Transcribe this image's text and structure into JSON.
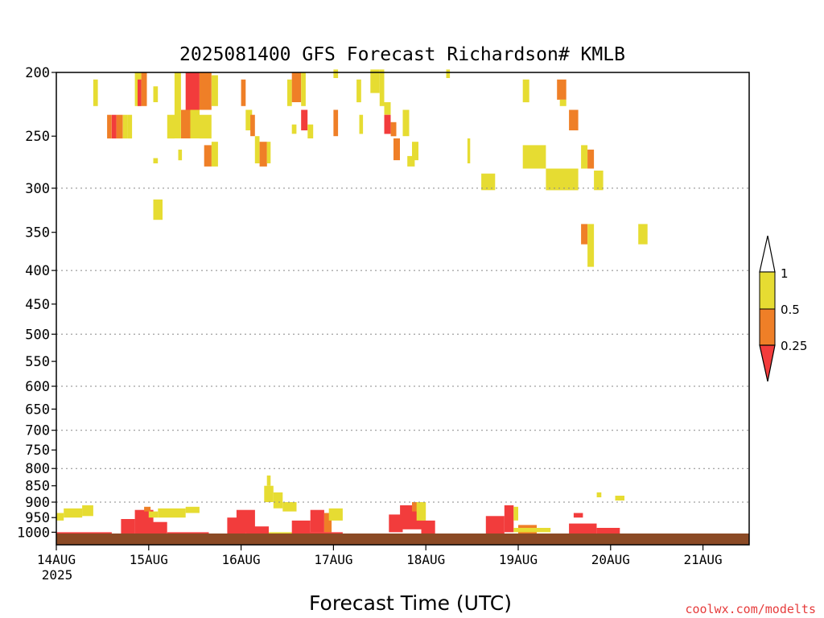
{
  "chart_data": {
    "type": "heatmap",
    "title": "2025081400 GFS Forecast Richardson# KMLB",
    "xlabel": "Forecast Time (UTC)",
    "ylabel": "",
    "credit": "coolwx.com/modelts",
    "x_axis": {
      "ticks": [
        "14AUG",
        "15AUG",
        "16AUG",
        "17AUG",
        "18AUG",
        "19AUG",
        "20AUG",
        "21AUG"
      ],
      "year": "2025",
      "range_days": [
        0,
        7.5
      ]
    },
    "y_axis": {
      "scale": "log",
      "reversed": true,
      "range_hpa": [
        1045,
        200
      ],
      "ticks": [
        200,
        250,
        300,
        350,
        400,
        450,
        500,
        550,
        600,
        650,
        700,
        750,
        800,
        850,
        900,
        950,
        1000
      ],
      "dotted_grid": [
        300,
        400,
        500,
        600,
        700,
        800,
        900
      ]
    },
    "colorbar": {
      "labels": [
        "1",
        "0.5",
        "0.25"
      ],
      "bins": [
        {
          "range": "0.5-1",
          "color": "#e6dc32"
        },
        {
          "range": "0.25-0.5",
          "color": "#ef7f27"
        },
        {
          "range": "<0.25",
          "color": "#f23c3c"
        }
      ],
      "over_color": "#ffffff"
    },
    "colors": {
      "yellow": "#e6dc32",
      "orange": "#ef7f27",
      "red": "#f23c3c",
      "ground": "#8b4a25"
    },
    "cells": [
      {
        "t": [
          0.4,
          0.45
        ],
        "p": [
          205,
          225
        ],
        "c": "y"
      },
      {
        "t": [
          0.55,
          0.6
        ],
        "p": [
          232,
          252
        ],
        "c": "o"
      },
      {
        "t": [
          0.6,
          0.65
        ],
        "p": [
          232,
          252
        ],
        "c": "r"
      },
      {
        "t": [
          0.65,
          0.72
        ],
        "p": [
          232,
          252
        ],
        "c": "o"
      },
      {
        "t": [
          0.72,
          0.77
        ],
        "p": [
          232,
          252
        ],
        "c": "y"
      },
      {
        "t": [
          0.77,
          0.82
        ],
        "p": [
          232,
          252
        ],
        "c": "y"
      },
      {
        "t": [
          0.85,
          0.92
        ],
        "p": [
          200,
          225
        ],
        "c": "y"
      },
      {
        "t": [
          0.88,
          0.92
        ],
        "p": [
          205,
          225
        ],
        "c": "r"
      },
      {
        "t": [
          0.92,
          0.98
        ],
        "p": [
          200,
          225
        ],
        "c": "o"
      },
      {
        "t": [
          1.05,
          1.1
        ],
        "p": [
          210,
          222
        ],
        "c": "y"
      },
      {
        "t": [
          1.05,
          1.1
        ],
        "p": [
          270,
          275
        ],
        "c": "y"
      },
      {
        "t": [
          1.05,
          1.15
        ],
        "p": [
          312,
          335
        ],
        "c": "y"
      },
      {
        "t": [
          1.2,
          1.28
        ],
        "p": [
          232,
          252
        ],
        "c": "y"
      },
      {
        "t": [
          1.28,
          1.35
        ],
        "p": [
          200,
          252
        ],
        "c": "y"
      },
      {
        "t": [
          1.35,
          1.45
        ],
        "p": [
          228,
          252
        ],
        "c": "o"
      },
      {
        "t": [
          1.4,
          1.55
        ],
        "p": [
          200,
          228
        ],
        "c": "r"
      },
      {
        "t": [
          1.45,
          1.55
        ],
        "p": [
          228,
          252
        ],
        "c": "y"
      },
      {
        "t": [
          1.55,
          1.68
        ],
        "p": [
          200,
          228
        ],
        "c": "o"
      },
      {
        "t": [
          1.55,
          1.68
        ],
        "p": [
          232,
          252
        ],
        "c": "y"
      },
      {
        "t": [
          1.68,
          1.75
        ],
        "p": [
          202,
          225
        ],
        "c": "y"
      },
      {
        "t": [
          1.6,
          1.68
        ],
        "p": [
          258,
          278
        ],
        "c": "o"
      },
      {
        "t": [
          1.68,
          1.75
        ],
        "p": [
          255,
          278
        ],
        "c": "y"
      },
      {
        "t": [
          1.32,
          1.36
        ],
        "p": [
          262,
          272
        ],
        "c": "y"
      },
      {
        "t": [
          2.0,
          2.05
        ],
        "p": [
          205,
          225
        ],
        "c": "o"
      },
      {
        "t": [
          2.05,
          2.12
        ],
        "p": [
          228,
          245
        ],
        "c": "y"
      },
      {
        "t": [
          2.1,
          2.15
        ],
        "p": [
          232,
          250
        ],
        "c": "o"
      },
      {
        "t": [
          2.15,
          2.2
        ],
        "p": [
          250,
          275
        ],
        "c": "y"
      },
      {
        "t": [
          2.2,
          2.28
        ],
        "p": [
          255,
          278
        ],
        "c": "o"
      },
      {
        "t": [
          2.28,
          2.32
        ],
        "p": [
          255,
          275
        ],
        "c": "y"
      },
      {
        "t": [
          2.5,
          2.55
        ],
        "p": [
          205,
          225
        ],
        "c": "y"
      },
      {
        "t": [
          2.55,
          2.65
        ],
        "p": [
          200,
          222
        ],
        "c": "o"
      },
      {
        "t": [
          2.65,
          2.7
        ],
        "p": [
          200,
          225
        ],
        "c": "y"
      },
      {
        "t": [
          2.65,
          2.72
        ],
        "p": [
          228,
          245
        ],
        "c": "r"
      },
      {
        "t": [
          2.55,
          2.6
        ],
        "p": [
          240,
          248
        ],
        "c": "y"
      },
      {
        "t": [
          2.72,
          2.78
        ],
        "p": [
          240,
          252
        ],
        "c": "y"
      },
      {
        "t": [
          3.0,
          3.05
        ],
        "p": [
          198,
          204
        ],
        "c": "y"
      },
      {
        "t": [
          3.0,
          3.05
        ],
        "p": [
          228,
          250
        ],
        "c": "o"
      },
      {
        "t": [
          3.25,
          3.3
        ],
        "p": [
          205,
          222
        ],
        "c": "y"
      },
      {
        "t": [
          3.28,
          3.32
        ],
        "p": [
          232,
          248
        ],
        "c": "y"
      },
      {
        "t": [
          3.4,
          3.5
        ],
        "p": [
          198,
          215
        ],
        "c": "y"
      },
      {
        "t": [
          3.5,
          3.55
        ],
        "p": [
          198,
          225
        ],
        "c": "y"
      },
      {
        "t": [
          3.55,
          3.62
        ],
        "p": [
          222,
          232
        ],
        "c": "y"
      },
      {
        "t": [
          3.55,
          3.62
        ],
        "p": [
          232,
          248
        ],
        "c": "r"
      },
      {
        "t": [
          3.62,
          3.68
        ],
        "p": [
          238,
          250
        ],
        "c": "o"
      },
      {
        "t": [
          3.65,
          3.72
        ],
        "p": [
          252,
          272
        ],
        "c": "o"
      },
      {
        "t": [
          3.75,
          3.82
        ],
        "p": [
          228,
          250
        ],
        "c": "y"
      },
      {
        "t": [
          3.85,
          3.92
        ],
        "p": [
          255,
          272
        ],
        "c": "y"
      },
      {
        "t": [
          3.8,
          3.88
        ],
        "p": [
          268,
          278
        ],
        "c": "y"
      },
      {
        "t": [
          4.22,
          4.26
        ],
        "p": [
          198,
          204
        ],
        "c": "y"
      },
      {
        "t": [
          4.45,
          4.48
        ],
        "p": [
          252,
          275
        ],
        "c": "y"
      },
      {
        "t": [
          4.6,
          4.75
        ],
        "p": [
          285,
          302
        ],
        "c": "y"
      },
      {
        "t": [
          5.05,
          5.12
        ],
        "p": [
          205,
          222
        ],
        "c": "y"
      },
      {
        "t": [
          5.42,
          5.52
        ],
        "p": [
          205,
          220
        ],
        "c": "o"
      },
      {
        "t": [
          5.45,
          5.52
        ],
        "p": [
          220,
          225
        ],
        "c": "y"
      },
      {
        "t": [
          5.55,
          5.65
        ],
        "p": [
          228,
          245
        ],
        "c": "o"
      },
      {
        "t": [
          5.05,
          5.3
        ],
        "p": [
          258,
          280
        ],
        "c": "y"
      },
      {
        "t": [
          5.3,
          5.65
        ],
        "p": [
          280,
          302
        ],
        "c": "y"
      },
      {
        "t": [
          5.68,
          5.75
        ],
        "p": [
          258,
          280
        ],
        "c": "y"
      },
      {
        "t": [
          5.75,
          5.82
        ],
        "p": [
          262,
          280
        ],
        "c": "o"
      },
      {
        "t": [
          5.82,
          5.92
        ],
        "p": [
          282,
          302
        ],
        "c": "y"
      },
      {
        "t": [
          5.68,
          5.75
        ],
        "p": [
          340,
          365
        ],
        "c": "o"
      },
      {
        "t": [
          5.75,
          5.82
        ],
        "p": [
          340,
          395
        ],
        "c": "y"
      },
      {
        "t": [
          6.3,
          6.4
        ],
        "p": [
          340,
          365
        ],
        "c": "y"
      },
      {
        "t": [
          0.0,
          0.08
        ],
        "p": [
          935,
          960
        ],
        "c": "y"
      },
      {
        "t": [
          0.08,
          0.28
        ],
        "p": [
          920,
          950
        ],
        "c": "y"
      },
      {
        "t": [
          0.28,
          0.4
        ],
        "p": [
          910,
          945
        ],
        "c": "y"
      },
      {
        "t": [
          0.0,
          0.6
        ],
        "p": [
          1000,
          1012
        ],
        "c": "r"
      },
      {
        "t": [
          0.7,
          0.85
        ],
        "p": [
          955,
          1012
        ],
        "c": "r"
      },
      {
        "t": [
          0.85,
          1.05
        ],
        "p": [
          925,
          1012
        ],
        "c": "r"
      },
      {
        "t": [
          0.95,
          1.02
        ],
        "p": [
          915,
          930
        ],
        "c": "o"
      },
      {
        "t": [
          1.05,
          1.2
        ],
        "p": [
          965,
          1012
        ],
        "c": "r"
      },
      {
        "t": [
          1.0,
          1.1
        ],
        "p": [
          930,
          950
        ],
        "c": "y"
      },
      {
        "t": [
          1.1,
          1.4
        ],
        "p": [
          920,
          950
        ],
        "c": "y"
      },
      {
        "t": [
          1.4,
          1.55
        ],
        "p": [
          915,
          935
        ],
        "c": "y"
      },
      {
        "t": [
          1.2,
          1.65
        ],
        "p": [
          1000,
          1012
        ],
        "c": "r"
      },
      {
        "t": [
          1.65,
          1.9
        ],
        "p": [
          1005,
          1012
        ],
        "c": "y"
      },
      {
        "t": [
          1.85,
          2.05
        ],
        "p": [
          950,
          1012
        ],
        "c": "r"
      },
      {
        "t": [
          1.95,
          2.15
        ],
        "p": [
          925,
          1000
        ],
        "c": "r"
      },
      {
        "t": [
          2.05,
          2.3
        ],
        "p": [
          980,
          1012
        ],
        "c": "r"
      },
      {
        "t": [
          2.25,
          2.35
        ],
        "p": [
          850,
          900
        ],
        "c": "y"
      },
      {
        "t": [
          2.35,
          2.45
        ],
        "p": [
          870,
          920
        ],
        "c": "y"
      },
      {
        "t": [
          2.45,
          2.6
        ],
        "p": [
          900,
          930
        ],
        "c": "y"
      },
      {
        "t": [
          2.28,
          2.32
        ],
        "p": [
          820,
          850
        ],
        "c": "y"
      },
      {
        "t": [
          2.3,
          2.7
        ],
        "p": [
          1000,
          1012
        ],
        "c": "y"
      },
      {
        "t": [
          2.55,
          2.75
        ],
        "p": [
          960,
          1012
        ],
        "c": "r"
      },
      {
        "t": [
          2.75,
          2.9
        ],
        "p": [
          925,
          1000
        ],
        "c": "r"
      },
      {
        "t": [
          2.9,
          2.98
        ],
        "p": [
          935,
          1000
        ],
        "c": "o"
      },
      {
        "t": [
          2.95,
          3.1
        ],
        "p": [
          920,
          960
        ],
        "c": "y"
      },
      {
        "t": [
          2.6,
          3.1
        ],
        "p": [
          1000,
          1012
        ],
        "c": "r"
      },
      {
        "t": [
          3.6,
          3.75
        ],
        "p": [
          940,
          1000
        ],
        "c": "r"
      },
      {
        "t": [
          3.72,
          3.95
        ],
        "p": [
          910,
          990
        ],
        "c": "r"
      },
      {
        "t": [
          3.85,
          3.95
        ],
        "p": [
          900,
          930
        ],
        "c": "o"
      },
      {
        "t": [
          3.9,
          4.0
        ],
        "p": [
          900,
          960
        ],
        "c": "y"
      },
      {
        "t": [
          3.95,
          4.1
        ],
        "p": [
          960,
          1012
        ],
        "c": "r"
      },
      {
        "t": [
          4.05,
          4.4
        ],
        "p": [
          1005,
          1012
        ],
        "c": "y"
      },
      {
        "t": [
          4.65,
          4.85
        ],
        "p": [
          945,
          1012
        ],
        "c": "r"
      },
      {
        "t": [
          4.85,
          4.95
        ],
        "p": [
          910,
          1000
        ],
        "c": "r"
      },
      {
        "t": [
          4.95,
          5.0
        ],
        "p": [
          915,
          960
        ],
        "c": "y"
      },
      {
        "t": [
          5.0,
          5.2
        ],
        "p": [
          975,
          1012
        ],
        "c": "o"
      },
      {
        "t": [
          4.95,
          5.35
        ],
        "p": [
          985,
          1000
        ],
        "c": "y"
      },
      {
        "t": [
          5.55,
          5.85
        ],
        "p": [
          970,
          1012
        ],
        "c": "r"
      },
      {
        "t": [
          5.6,
          5.7
        ],
        "p": [
          935,
          950
        ],
        "c": "r"
      },
      {
        "t": [
          5.85,
          6.1
        ],
        "p": [
          985,
          1005
        ],
        "c": "r"
      },
      {
        "t": [
          5.85,
          5.9
        ],
        "p": [
          870,
          885
        ],
        "c": "y"
      },
      {
        "t": [
          6.05,
          6.15
        ],
        "p": [
          880,
          895
        ],
        "c": "y"
      },
      {
        "t": [
          6.1,
          6.3
        ],
        "p": [
          1005,
          1012
        ],
        "c": "r"
      }
    ]
  }
}
